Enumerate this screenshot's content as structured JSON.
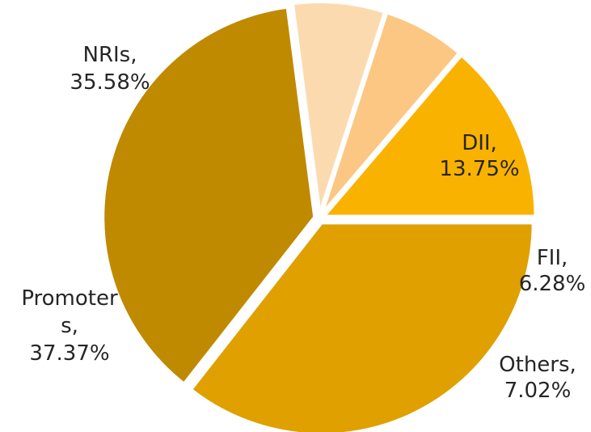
{
  "chart_data": {
    "type": "pie",
    "title": "",
    "legend": "none",
    "slices": [
      {
        "label_lines": [
          "DII,",
          "13.75%"
        ],
        "name": "DII",
        "value": 13.75,
        "color": "#F9B200"
      },
      {
        "label_lines": [
          "FII,",
          "6.28%"
        ],
        "name": "FII",
        "value": 6.28,
        "color": "#FBC782"
      },
      {
        "label_lines": [
          "Others,",
          "7.02%"
        ],
        "name": "Others",
        "value": 7.02,
        "color": "#FCDAB0"
      },
      {
        "label_lines": [
          "Promoter",
          "s,",
          "37.37%"
        ],
        "name": "Promoters",
        "value": 37.37,
        "color": "#BF8A00"
      },
      {
        "label_lines": [
          "NRIs,",
          "35.58%"
        ],
        "name": "NRIs",
        "value": 35.58,
        "color": "#DFA000"
      }
    ]
  }
}
